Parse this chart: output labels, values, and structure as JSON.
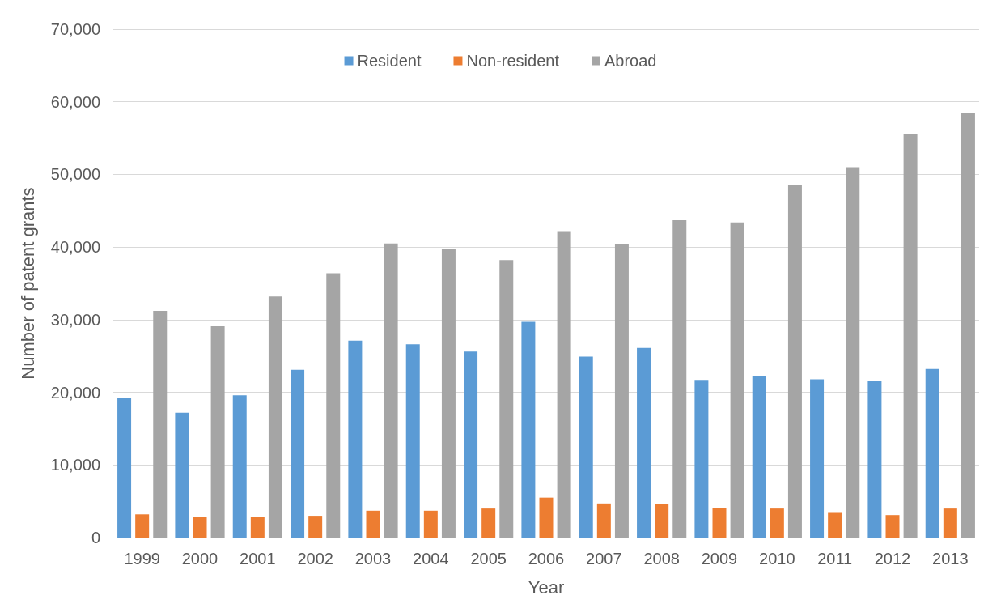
{
  "chart_data": {
    "type": "bar",
    "xlabel": "Year",
    "ylabel": "Number of patent grants",
    "categories": [
      "1999",
      "2000",
      "2001",
      "2002",
      "2003",
      "2004",
      "2005",
      "2006",
      "2007",
      "2008",
      "2009",
      "2010",
      "2011",
      "2012",
      "2013"
    ],
    "series": [
      {
        "name": "Resident",
        "color": "#5b9bd5",
        "values": [
          19200,
          17200,
          19600,
          23100,
          27100,
          26600,
          25600,
          29700,
          24900,
          26100,
          21700,
          22200,
          21800,
          21500,
          23200
        ]
      },
      {
        "name": "Non-resident",
        "color": "#ed7d31",
        "values": [
          3200,
          2900,
          2800,
          3000,
          3700,
          3700,
          4000,
          5500,
          4700,
          4600,
          4100,
          4000,
          3400,
          3100,
          4000
        ]
      },
      {
        "name": "Abroad",
        "color": "#a5a5a5",
        "values": [
          31200,
          29100,
          33200,
          36400,
          40500,
          39800,
          38200,
          42200,
          40400,
          43700,
          43400,
          48500,
          51000,
          55600,
          58400
        ]
      }
    ],
    "ylim": [
      0,
      70000
    ],
    "yticks": [
      0,
      {
        "value": 10000,
        "label": "10,000"
      },
      {
        "value": 20000,
        "label": "20,000"
      },
      {
        "value": 30000,
        "label": "30,000"
      },
      {
        "value": 40000,
        "label": "40,000"
      },
      {
        "value": 50000,
        "label": "50,000"
      },
      {
        "value": 60000,
        "label": "60,000"
      },
      {
        "value": 70000,
        "label": "70,000"
      }
    ],
    "grid": "y",
    "legend": "top"
  }
}
